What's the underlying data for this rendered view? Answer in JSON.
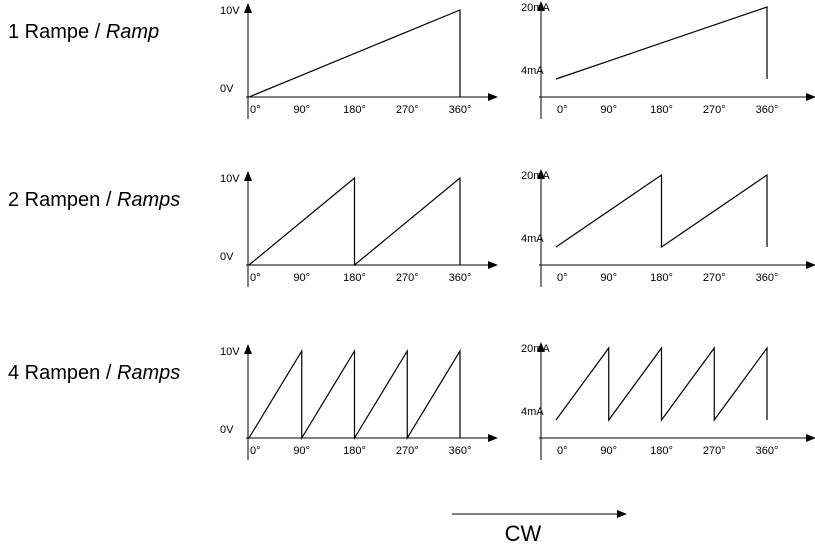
{
  "rows": [
    {
      "label_prefix": "1 Rampe / ",
      "label_italic": "Ramp",
      "ramps": 1,
      "voltage": {
        "y_low": "0V",
        "y_high": "10V",
        "x_ticks": [
          "0°",
          "90°",
          "180°",
          "270°",
          "360°"
        ]
      },
      "current": {
        "y_low": "4mA",
        "y_high": "20mA",
        "x_ticks": [
          "0°",
          "90°",
          "180°",
          "270°",
          "360°"
        ]
      }
    },
    {
      "label_prefix": "2 Rampen / ",
      "label_italic": "Ramps",
      "ramps": 2,
      "voltage": {
        "y_low": "0V",
        "y_high": "10V",
        "x_ticks": [
          "0°",
          "90°",
          "180°",
          "270°",
          "360°"
        ]
      },
      "current": {
        "y_low": "4mA",
        "y_high": "20mA",
        "x_ticks": [
          "0°",
          "90°",
          "180°",
          "270°",
          "360°"
        ]
      }
    },
    {
      "label_prefix": "4 Rampen / ",
      "label_italic": "Ramps",
      "ramps": 4,
      "voltage": {
        "y_low": "0V",
        "y_high": "10V",
        "x_ticks": [
          "0°",
          "90°",
          "180°",
          "270°",
          "360°"
        ]
      },
      "current": {
        "y_low": "4mA",
        "y_high": "20mA",
        "x_ticks": [
          "0°",
          "90°",
          "180°",
          "270°",
          "360°"
        ]
      }
    }
  ],
  "direction": {
    "label": "CW"
  }
}
